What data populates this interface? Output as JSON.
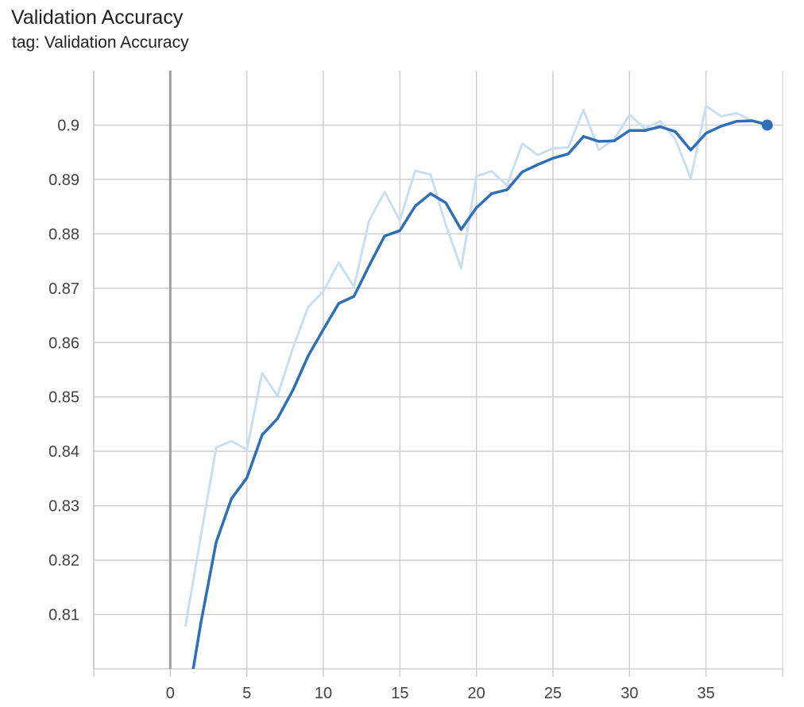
{
  "header": {
    "title": "Validation Accuracy",
    "subtitle": "tag: Validation Accuracy"
  },
  "colors": {
    "smoothed_line": "#2f6fb5",
    "raw_line": "#c9dff0",
    "grid": "#cfcfcf",
    "zero_axis": "#9e9e9e"
  },
  "chart_data": {
    "type": "line",
    "title": "Validation Accuracy",
    "xlabel": "",
    "ylabel": "",
    "xlim": [
      -5,
      40
    ],
    "ylim": [
      0.8,
      0.91
    ],
    "grid": true,
    "x_ticks": [
      {
        "value": 0,
        "label": "0"
      },
      {
        "value": 5,
        "label": "5"
      },
      {
        "value": 10,
        "label": "10"
      },
      {
        "value": 15,
        "label": "15"
      },
      {
        "value": 20,
        "label": "20"
      },
      {
        "value": 25,
        "label": "25"
      },
      {
        "value": 30,
        "label": "30"
      },
      {
        "value": 35,
        "label": "35"
      }
    ],
    "y_ticks": [
      {
        "value": 0.81,
        "label": "0.81"
      },
      {
        "value": 0.82,
        "label": "0.82"
      },
      {
        "value": 0.83,
        "label": "0.83"
      },
      {
        "value": 0.84,
        "label": "0.84"
      },
      {
        "value": 0.85,
        "label": "0.85"
      },
      {
        "value": 0.86,
        "label": "0.86"
      },
      {
        "value": 0.87,
        "label": "0.87"
      },
      {
        "value": 0.88,
        "label": "0.88"
      },
      {
        "value": 0.89,
        "label": "0.89"
      },
      {
        "value": 0.9,
        "label": "0.9"
      }
    ],
    "series": [
      {
        "role": "raw",
        "x": [
          1,
          2,
          3,
          4,
          5,
          6,
          7,
          8,
          9,
          10,
          11,
          12,
          13,
          14,
          15,
          16,
          17,
          18,
          19,
          20,
          21,
          22,
          23,
          24,
          25,
          26,
          27,
          28,
          29,
          30,
          31,
          32,
          33,
          34,
          35,
          36,
          37,
          38,
          39
        ],
        "values": [
          0.808,
          0.8245,
          0.8407,
          0.8419,
          0.8403,
          0.8544,
          0.8502,
          0.8589,
          0.8665,
          0.8694,
          0.8747,
          0.8703,
          0.8825,
          0.8877,
          0.8825,
          0.8916,
          0.8909,
          0.8817,
          0.8737,
          0.8906,
          0.8915,
          0.8889,
          0.8966,
          0.8945,
          0.8957,
          0.8959,
          0.9028,
          0.8954,
          0.8974,
          0.9019,
          0.8994,
          0.9007,
          0.8974,
          0.8902,
          0.9035,
          0.9016,
          0.9022,
          0.9008,
          0.9001
        ]
      },
      {
        "role": "smoothed",
        "x": [
          1.5,
          2,
          3,
          4,
          5,
          6,
          7,
          8,
          9,
          10,
          11,
          12,
          13,
          14,
          15,
          16,
          17,
          18,
          19,
          20,
          21,
          22,
          23,
          24,
          25,
          26,
          27,
          28,
          29,
          30,
          31,
          32,
          33,
          34,
          35,
          36,
          37,
          38,
          39
        ],
        "values": [
          0.8,
          0.8085,
          0.8233,
          0.8313,
          0.8351,
          0.843,
          0.846,
          0.8512,
          0.8575,
          0.8624,
          0.8672,
          0.8685,
          0.8742,
          0.8796,
          0.8806,
          0.8851,
          0.8874,
          0.8857,
          0.8808,
          0.8848,
          0.8874,
          0.8881,
          0.8914,
          0.8927,
          0.8939,
          0.8947,
          0.8979,
          0.897,
          0.8971,
          0.899,
          0.899,
          0.8997,
          0.8988,
          0.8954,
          0.8985,
          0.8998,
          0.9007,
          0.9008,
          0.9001
        ]
      }
    ],
    "last_point": {
      "x": 39,
      "y": 0.9
    }
  }
}
